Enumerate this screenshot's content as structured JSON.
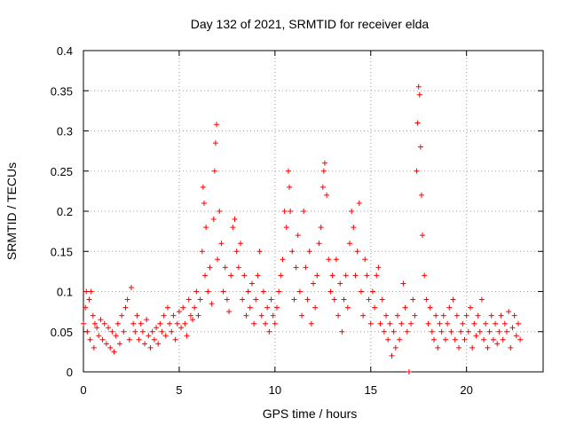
{
  "chart_data": {
    "type": "scatter",
    "title": "Day 132 of 2021, SRMTID for receiver elda",
    "xlabel": "GPS time / hours",
    "ylabel": "SRMTID / TECUs",
    "xlim": [
      0,
      24
    ],
    "ylim": [
      0,
      0.4
    ],
    "xticks": [
      0,
      5,
      10,
      15,
      20
    ],
    "xtick_labels": [
      "0",
      "5",
      "10",
      "15",
      "20"
    ],
    "yticks": [
      0,
      0.05,
      0.1,
      0.15,
      0.2,
      0.25,
      0.3,
      0.35,
      0.4
    ],
    "ytick_labels": [
      "0",
      "0.05",
      "0.1",
      "0.15",
      "0.2",
      "0.25",
      "0.3",
      "0.35",
      "0.4"
    ],
    "grid": true,
    "marker": "+",
    "color": "#ff0000",
    "series": [
      {
        "name": "SRMTID",
        "points": [
          [
            0.0,
            0.06
          ],
          [
            0.1,
            0.08
          ],
          [
            0.15,
            0.1
          ],
          [
            0.2,
            0.05
          ],
          [
            0.3,
            0.09
          ],
          [
            0.35,
            0.04
          ],
          [
            0.4,
            0.1
          ],
          [
            0.5,
            0.07
          ],
          [
            0.55,
            0.03
          ],
          [
            0.6,
            0.06
          ],
          [
            0.7,
            0.055
          ],
          [
            0.8,
            0.045
          ],
          [
            0.9,
            0.065
          ],
          [
            1.0,
            0.04
          ],
          [
            1.1,
            0.06
          ],
          [
            1.2,
            0.035
          ],
          [
            1.3,
            0.055
          ],
          [
            1.4,
            0.03
          ],
          [
            1.5,
            0.05
          ],
          [
            1.6,
            0.025
          ],
          [
            1.7,
            0.045
          ],
          [
            1.8,
            0.06
          ],
          [
            1.9,
            0.035
          ],
          [
            2.0,
            0.07
          ],
          [
            2.1,
            0.05
          ],
          [
            2.2,
            0.08
          ],
          [
            2.3,
            0.09
          ],
          [
            2.4,
            0.04
          ],
          [
            2.5,
            0.105
          ],
          [
            2.6,
            0.06
          ],
          [
            2.7,
            0.05
          ],
          [
            2.8,
            0.07
          ],
          [
            2.9,
            0.04
          ],
          [
            3.0,
            0.06
          ],
          [
            3.1,
            0.05
          ],
          [
            3.2,
            0.035
          ],
          [
            3.3,
            0.065
          ],
          [
            3.4,
            0.045
          ],
          [
            3.5,
            0.03
          ],
          [
            3.6,
            0.05
          ],
          [
            3.7,
            0.04
          ],
          [
            3.8,
            0.055
          ],
          [
            3.9,
            0.035
          ],
          [
            4.0,
            0.06
          ],
          [
            4.1,
            0.05
          ],
          [
            4.2,
            0.07
          ],
          [
            4.3,
            0.045
          ],
          [
            4.4,
            0.08
          ],
          [
            4.5,
            0.06
          ],
          [
            4.6,
            0.05
          ],
          [
            4.7,
            0.07
          ],
          [
            4.8,
            0.04
          ],
          [
            4.9,
            0.06
          ],
          [
            5.0,
            0.075
          ],
          [
            5.1,
            0.055
          ],
          [
            5.2,
            0.08
          ],
          [
            5.3,
            0.06
          ],
          [
            5.4,
            0.045
          ],
          [
            5.5,
            0.09
          ],
          [
            5.6,
            0.07
          ],
          [
            5.7,
            0.065
          ],
          [
            5.8,
            0.08
          ],
          [
            5.9,
            0.1
          ],
          [
            6.0,
            0.07
          ],
          [
            6.1,
            0.09
          ],
          [
            6.2,
            0.15
          ],
          [
            6.25,
            0.23
          ],
          [
            6.3,
            0.21
          ],
          [
            6.35,
            0.12
          ],
          [
            6.4,
            0.18
          ],
          [
            6.5,
            0.1
          ],
          [
            6.6,
            0.13
          ],
          [
            6.7,
            0.085
          ],
          [
            6.8,
            0.19
          ],
          [
            6.85,
            0.25
          ],
          [
            6.9,
            0.285
          ],
          [
            6.95,
            0.308
          ],
          [
            7.0,
            0.14
          ],
          [
            7.1,
            0.2
          ],
          [
            7.2,
            0.16
          ],
          [
            7.3,
            0.1
          ],
          [
            7.4,
            0.13
          ],
          [
            7.5,
            0.09
          ],
          [
            7.6,
            0.075
          ],
          [
            7.7,
            0.12
          ],
          [
            7.8,
            0.18
          ],
          [
            7.9,
            0.19
          ],
          [
            8.0,
            0.15
          ],
          [
            8.1,
            0.13
          ],
          [
            8.2,
            0.16
          ],
          [
            8.3,
            0.09
          ],
          [
            8.4,
            0.12
          ],
          [
            8.5,
            0.07
          ],
          [
            8.6,
            0.1
          ],
          [
            8.7,
            0.08
          ],
          [
            8.8,
            0.11
          ],
          [
            8.9,
            0.06
          ],
          [
            9.0,
            0.09
          ],
          [
            9.1,
            0.12
          ],
          [
            9.2,
            0.15
          ],
          [
            9.3,
            0.07
          ],
          [
            9.4,
            0.1
          ],
          [
            9.5,
            0.06
          ],
          [
            9.6,
            0.08
          ],
          [
            9.7,
            0.05
          ],
          [
            9.8,
            0.09
          ],
          [
            9.9,
            0.07
          ],
          [
            10.0,
            0.06
          ],
          [
            10.1,
            0.08
          ],
          [
            10.2,
            0.1
          ],
          [
            10.3,
            0.12
          ],
          [
            10.4,
            0.14
          ],
          [
            10.5,
            0.2
          ],
          [
            10.6,
            0.18
          ],
          [
            10.7,
            0.25
          ],
          [
            10.75,
            0.23
          ],
          [
            10.8,
            0.2
          ],
          [
            10.9,
            0.15
          ],
          [
            11.0,
            0.09
          ],
          [
            11.1,
            0.13
          ],
          [
            11.2,
            0.17
          ],
          [
            11.3,
            0.1
          ],
          [
            11.4,
            0.07
          ],
          [
            11.5,
            0.2
          ],
          [
            11.6,
            0.13
          ],
          [
            11.7,
            0.09
          ],
          [
            11.8,
            0.15
          ],
          [
            11.9,
            0.06
          ],
          [
            12.0,
            0.11
          ],
          [
            12.1,
            0.08
          ],
          [
            12.2,
            0.12
          ],
          [
            12.3,
            0.16
          ],
          [
            12.4,
            0.18
          ],
          [
            12.5,
            0.23
          ],
          [
            12.55,
            0.25
          ],
          [
            12.6,
            0.26
          ],
          [
            12.7,
            0.22
          ],
          [
            12.8,
            0.14
          ],
          [
            12.9,
            0.1
          ],
          [
            13.0,
            0.12
          ],
          [
            13.1,
            0.09
          ],
          [
            13.2,
            0.14
          ],
          [
            13.3,
            0.07
          ],
          [
            13.4,
            0.11
          ],
          [
            13.5,
            0.05
          ],
          [
            13.6,
            0.09
          ],
          [
            13.7,
            0.12
          ],
          [
            13.8,
            0.08
          ],
          [
            13.9,
            0.16
          ],
          [
            14.0,
            0.2
          ],
          [
            14.1,
            0.18
          ],
          [
            14.2,
            0.12
          ],
          [
            14.3,
            0.15
          ],
          [
            14.4,
            0.21
          ],
          [
            14.5,
            0.1
          ],
          [
            14.6,
            0.07
          ],
          [
            14.7,
            0.14
          ],
          [
            14.8,
            0.12
          ],
          [
            14.9,
            0.09
          ],
          [
            15.0,
            0.06
          ],
          [
            15.1,
            0.1
          ],
          [
            15.2,
            0.08
          ],
          [
            15.3,
            0.12
          ],
          [
            15.4,
            0.13
          ],
          [
            15.5,
            0.06
          ],
          [
            15.6,
            0.09
          ],
          [
            15.7,
            0.05
          ],
          [
            15.8,
            0.07
          ],
          [
            15.9,
            0.04
          ],
          [
            16.0,
            0.06
          ],
          [
            16.1,
            0.02
          ],
          [
            16.2,
            0.05
          ],
          [
            16.3,
            0.03
          ],
          [
            16.4,
            0.07
          ],
          [
            16.5,
            0.04
          ],
          [
            16.6,
            0.06
          ],
          [
            16.7,
            0.11
          ],
          [
            16.8,
            0.08
          ],
          [
            16.9,
            0.05
          ],
          [
            17.0,
            0.0
          ],
          [
            17.1,
            0.06
          ],
          [
            17.2,
            0.09
          ],
          [
            17.3,
            0.07
          ],
          [
            17.4,
            0.25
          ],
          [
            17.45,
            0.31
          ],
          [
            17.5,
            0.355
          ],
          [
            17.55,
            0.345
          ],
          [
            17.6,
            0.28
          ],
          [
            17.65,
            0.22
          ],
          [
            17.7,
            0.17
          ],
          [
            17.8,
            0.12
          ],
          [
            17.9,
            0.09
          ],
          [
            18.0,
            0.06
          ],
          [
            18.1,
            0.08
          ],
          [
            18.2,
            0.05
          ],
          [
            18.3,
            0.04
          ],
          [
            18.4,
            0.07
          ],
          [
            18.5,
            0.03
          ],
          [
            18.6,
            0.06
          ],
          [
            18.7,
            0.05
          ],
          [
            18.8,
            0.07
          ],
          [
            18.9,
            0.04
          ],
          [
            19.0,
            0.06
          ],
          [
            19.1,
            0.08
          ],
          [
            19.2,
            0.05
          ],
          [
            19.3,
            0.09
          ],
          [
            19.4,
            0.04
          ],
          [
            19.5,
            0.07
          ],
          [
            19.6,
            0.03
          ],
          [
            19.7,
            0.05
          ],
          [
            19.8,
            0.06
          ],
          [
            19.9,
            0.04
          ],
          [
            20.0,
            0.07
          ],
          [
            20.1,
            0.05
          ],
          [
            20.2,
            0.08
          ],
          [
            20.3,
            0.03
          ],
          [
            20.4,
            0.06
          ],
          [
            20.5,
            0.045
          ],
          [
            20.6,
            0.07
          ],
          [
            20.7,
            0.05
          ],
          [
            20.8,
            0.09
          ],
          [
            20.9,
            0.04
          ],
          [
            21.0,
            0.06
          ],
          [
            21.1,
            0.03
          ],
          [
            21.2,
            0.05
          ],
          [
            21.3,
            0.07
          ],
          [
            21.4,
            0.04
          ],
          [
            21.5,
            0.06
          ],
          [
            21.6,
            0.035
          ],
          [
            21.7,
            0.05
          ],
          [
            21.8,
            0.07
          ],
          [
            21.9,
            0.04
          ],
          [
            22.0,
            0.06
          ],
          [
            22.1,
            0.05
          ],
          [
            22.2,
            0.075
          ],
          [
            22.3,
            0.03
          ],
          [
            22.4,
            0.055
          ],
          [
            22.5,
            0.07
          ],
          [
            22.6,
            0.045
          ],
          [
            22.7,
            0.06
          ],
          [
            22.8,
            0.04
          ]
        ]
      }
    ]
  }
}
